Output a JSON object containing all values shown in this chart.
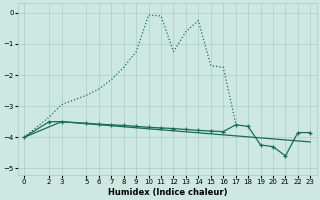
{
  "xlabel": "Humidex (Indice chaleur)",
  "xlim": [
    -0.5,
    23.5
  ],
  "ylim": [
    -5.2,
    0.3
  ],
  "yticks": [
    0,
    -1,
    -2,
    -3,
    -4,
    -5
  ],
  "xticks": [
    0,
    2,
    3,
    5,
    6,
    7,
    8,
    9,
    10,
    11,
    12,
    13,
    14,
    15,
    16,
    17,
    18,
    19,
    20,
    21,
    22,
    23
  ],
  "bg_color": "#cce8e0",
  "grid_color": "#a8cfc8",
  "line_color": "#1a6b5a",
  "dot_line_x": [
    0,
    2,
    3,
    5,
    6,
    7,
    8,
    9,
    10,
    11,
    12,
    13,
    14,
    15,
    16,
    17
  ],
  "dot_line_y": [
    -4.0,
    -3.35,
    -2.95,
    -2.65,
    -2.45,
    -2.15,
    -1.75,
    -1.25,
    -0.07,
    -0.1,
    -1.25,
    -0.6,
    -0.25,
    -1.7,
    -1.75,
    -3.55
  ],
  "main_line_x": [
    0,
    2,
    3,
    5,
    6,
    7,
    8,
    9,
    10,
    11,
    12,
    13,
    14,
    15,
    16,
    17,
    18,
    19,
    20,
    21,
    22,
    23
  ],
  "main_line_y": [
    -4.0,
    -3.5,
    -3.5,
    -3.55,
    -3.58,
    -3.6,
    -3.62,
    -3.65,
    -3.68,
    -3.7,
    -3.72,
    -3.75,
    -3.78,
    -3.8,
    -3.82,
    -3.6,
    -3.65,
    -4.25,
    -4.3,
    -4.6,
    -3.85,
    -3.85
  ],
  "straight_line_x": [
    0,
    3,
    23
  ],
  "straight_line_y": [
    -4.0,
    -3.5,
    -4.15
  ]
}
